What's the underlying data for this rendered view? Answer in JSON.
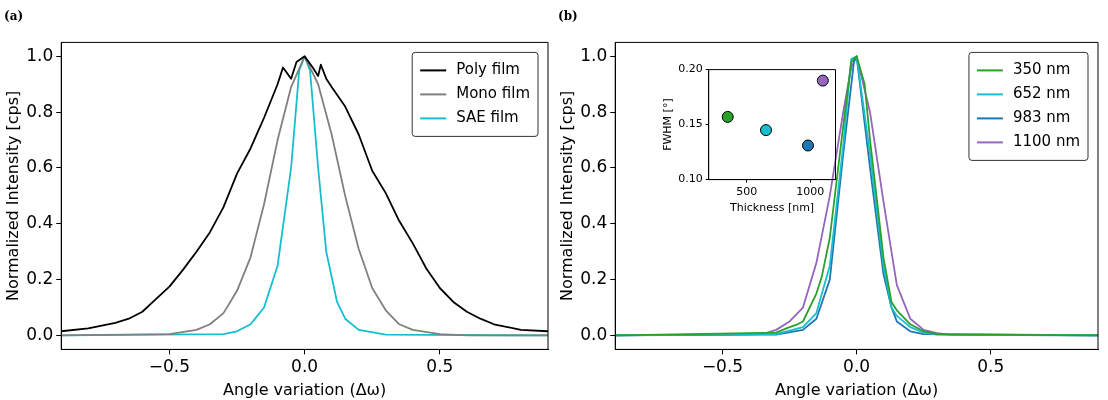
{
  "chart_data": [
    {
      "type": "line",
      "title": "(a)",
      "xlabel": "Angle variation (Δω)",
      "ylabel": "Normalized Intensity [cps]",
      "xlim": [
        -0.9,
        0.9
      ],
      "ylim": [
        -0.05,
        1.05
      ],
      "xticks": [
        {
          "value": -0.5,
          "label": "−0.5"
        },
        {
          "value": 0,
          "label": "0.0"
        },
        {
          "value": 0.5,
          "label": "0.5"
        }
      ],
      "yticks": [
        {
          "value": 0,
          "label": "0.0"
        },
        {
          "value": 0.2,
          "label": "0.2"
        },
        {
          "value": 0.4,
          "label": "0.4"
        },
        {
          "value": 0.6,
          "label": "0.6"
        },
        {
          "value": 0.8,
          "label": "0.8"
        },
        {
          "value": 1,
          "label": "1.0"
        }
      ],
      "grid": false,
      "legend": "top right",
      "marker": "none",
      "line_style": "solid",
      "series": [
        {
          "name": "Poly film",
          "color": "#000000",
          "x": [
            -0.9,
            -0.8,
            -0.7,
            -0.65,
            -0.6,
            -0.55,
            -0.5,
            -0.45,
            -0.4,
            -0.35,
            -0.3,
            -0.25,
            -0.2,
            -0.15,
            -0.1,
            -0.08,
            -0.05,
            -0.03,
            0,
            0.03,
            0.05,
            0.06,
            0.08,
            0.1,
            0.15,
            0.2,
            0.25,
            0.3,
            0.35,
            0.4,
            0.45,
            0.5,
            0.55,
            0.6,
            0.65,
            0.7,
            0.8,
            0.9
          ],
          "values": [
            0.015,
            0.025,
            0.045,
            0.06,
            0.085,
            0.13,
            0.175,
            0.235,
            0.3,
            0.37,
            0.46,
            0.58,
            0.67,
            0.78,
            0.9,
            0.96,
            0.92,
            0.98,
            1.0,
            0.96,
            0.93,
            0.97,
            0.92,
            0.89,
            0.82,
            0.72,
            0.59,
            0.51,
            0.41,
            0.33,
            0.24,
            0.17,
            0.12,
            0.085,
            0.06,
            0.04,
            0.02,
            0.015
          ]
        },
        {
          "name": "Mono film",
          "color": "#808080",
          "x": [
            -0.9,
            -0.5,
            -0.4,
            -0.35,
            -0.3,
            -0.25,
            -0.2,
            -0.15,
            -0.1,
            -0.05,
            0,
            0.05,
            0.1,
            0.15,
            0.2,
            0.25,
            0.3,
            0.35,
            0.4,
            0.5,
            0.6,
            0.9
          ],
          "values": [
            0,
            0.005,
            0.02,
            0.04,
            0.08,
            0.16,
            0.28,
            0.47,
            0.7,
            0.89,
            1.0,
            0.9,
            0.72,
            0.5,
            0.31,
            0.17,
            0.09,
            0.04,
            0.02,
            0.005,
            0,
            0
          ]
        },
        {
          "name": "SAE film",
          "color": "#17becf",
          "x": [
            -0.9,
            -0.3,
            -0.25,
            -0.2,
            -0.15,
            -0.1,
            -0.05,
            -0.02,
            0,
            0.02,
            0.05,
            0.08,
            0.12,
            0.15,
            0.2,
            0.3,
            0.9
          ],
          "values": [
            0,
            0.005,
            0.015,
            0.04,
            0.1,
            0.25,
            0.6,
            0.95,
            1.0,
            0.95,
            0.6,
            0.3,
            0.12,
            0.06,
            0.02,
            0.003,
            0
          ]
        }
      ]
    },
    {
      "type": "line",
      "title": "(b)",
      "xlabel": "Angle variation (Δω)",
      "ylabel": "Normalized Intensity [cps]",
      "xlim": [
        -0.9,
        0.9
      ],
      "ylim": [
        -0.05,
        1.05
      ],
      "xticks": [
        {
          "value": -0.5,
          "label": "−0.5"
        },
        {
          "value": 0,
          "label": "0.0"
        },
        {
          "value": 0.5,
          "label": "0.5"
        }
      ],
      "yticks": [
        {
          "value": 0,
          "label": "0.0"
        },
        {
          "value": 0.2,
          "label": "0.2"
        },
        {
          "value": 0.4,
          "label": "0.4"
        },
        {
          "value": 0.6,
          "label": "0.6"
        },
        {
          "value": 0.8,
          "label": "0.8"
        },
        {
          "value": 1,
          "label": "1.0"
        }
      ],
      "grid": false,
      "legend": "top right",
      "marker": "none",
      "line_style": "solid",
      "series": [
        {
          "name": "350 nm",
          "color": "#2ca02c",
          "x": [
            -0.9,
            -0.3,
            -0.25,
            -0.22,
            -0.2,
            -0.15,
            -0.13,
            -0.1,
            -0.05,
            -0.02,
            0,
            0.03,
            0.05,
            0.08,
            0.1,
            0.13,
            0.15,
            0.2,
            0.25,
            0.3,
            0.9
          ],
          "values": [
            0,
            0.01,
            0.03,
            0.04,
            0.05,
            0.15,
            0.21,
            0.35,
            0.75,
            0.98,
            1.0,
            0.9,
            0.7,
            0.45,
            0.28,
            0.12,
            0.09,
            0.04,
            0.015,
            0.005,
            0
          ]
        },
        {
          "name": "652 nm",
          "color": "#17becf",
          "x": [
            -0.9,
            -0.3,
            -0.2,
            -0.15,
            -0.1,
            -0.05,
            -0.02,
            0,
            0.05,
            0.1,
            0.13,
            0.15,
            0.2,
            0.25,
            0.3,
            0.9
          ],
          "values": [
            0,
            0.005,
            0.03,
            0.08,
            0.25,
            0.68,
            0.99,
            1.0,
            0.65,
            0.25,
            0.1,
            0.07,
            0.03,
            0.01,
            0.003,
            0
          ]
        },
        {
          "name": "983 nm",
          "color": "#1f77b4",
          "x": [
            -0.9,
            -0.3,
            -0.2,
            -0.15,
            -0.1,
            -0.05,
            -0.01,
            0,
            0.05,
            0.1,
            0.13,
            0.15,
            0.2,
            0.25,
            0.9
          ],
          "values": [
            0,
            0.003,
            0.02,
            0.06,
            0.2,
            0.65,
            0.98,
            1.0,
            0.6,
            0.22,
            0.1,
            0.05,
            0.015,
            0.005,
            0
          ]
        },
        {
          "name": "1100 nm",
          "color": "#9467bd",
          "x": [
            -0.9,
            -0.35,
            -0.3,
            -0.25,
            -0.2,
            -0.15,
            -0.1,
            -0.05,
            -0.02,
            0,
            0.05,
            0.1,
            0.15,
            0.2,
            0.25,
            0.3,
            0.35,
            0.9
          ],
          "values": [
            0,
            0.005,
            0.02,
            0.05,
            0.1,
            0.26,
            0.5,
            0.8,
            0.96,
            1.0,
            0.8,
            0.48,
            0.18,
            0.06,
            0.02,
            0.008,
            0.002,
            0
          ]
        }
      ]
    },
    {
      "type": "scatter",
      "xlabel": "Thickness [nm]",
      "ylabel": "FWHM [°]",
      "xlim": [
        200,
        1200
      ],
      "ylim": [
        0.1,
        0.2
      ],
      "xticks": [
        500,
        1000
      ],
      "yticks": [
        {
          "value": 0.1,
          "label": "0.10"
        },
        {
          "value": 0.15,
          "label": "0.15"
        },
        {
          "value": 0.2,
          "label": "0.20"
        }
      ],
      "grid": false,
      "marker": "circle",
      "x": [
        350,
        652,
        983,
        1100
      ],
      "values": [
        0.157,
        0.145,
        0.131,
        0.19
      ],
      "colors": [
        "#2ca02c",
        "#17becf",
        "#1f77b4",
        "#9467bd"
      ]
    }
  ]
}
